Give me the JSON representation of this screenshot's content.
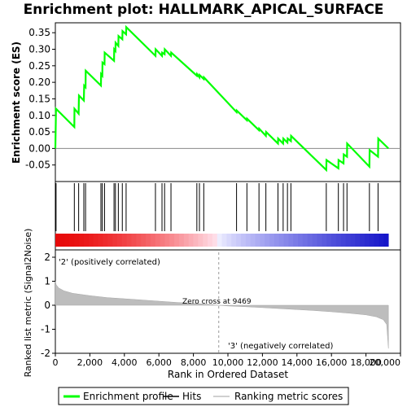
{
  "chart_data": {
    "type": "line",
    "title": "Enrichment plot: HALLMARK_APICAL_SURFACE",
    "top_panel": {
      "ylabel": "Enrichment score (ES)",
      "ylim": [
        -0.1,
        0.38
      ],
      "yticks": [
        "0.35",
        "0.30",
        "0.25",
        "0.20",
        "0.15",
        "0.10",
        "0.05",
        "0.00",
        "-0.05"
      ],
      "ytick_values": [
        0.35,
        0.3,
        0.25,
        0.2,
        0.15,
        0.1,
        0.05,
        0.0,
        -0.05
      ],
      "series": [
        {
          "name": "Enrichment profile",
          "color": "#00ff00",
          "x": [
            0,
            40,
            1100,
            1110,
            1350,
            1370,
            1650,
            1670,
            1750,
            1760,
            2640,
            2650,
            2720,
            2730,
            2850,
            2860,
            3400,
            3410,
            3480,
            3490,
            3650,
            3660,
            3880,
            3890,
            4100,
            4110,
            5800,
            5810,
            6180,
            6190,
            6330,
            6340,
            6700,
            6710,
            8200,
            8210,
            8350,
            8360,
            8600,
            8610,
            10500,
            10510,
            11100,
            11110,
            11800,
            11810,
            12200,
            12210,
            12900,
            12910,
            13200,
            13210,
            13450,
            13460,
            13650,
            13660,
            15700,
            15710,
            16400,
            16410,
            16700,
            16710,
            16900,
            16910,
            18200,
            18210,
            18700,
            18710,
            19300
          ],
          "y": [
            0.0,
            0.12,
            0.065,
            0.12,
            0.105,
            0.16,
            0.145,
            0.19,
            0.185,
            0.235,
            0.19,
            0.225,
            0.22,
            0.26,
            0.255,
            0.29,
            0.265,
            0.3,
            0.295,
            0.32,
            0.31,
            0.34,
            0.33,
            0.355,
            0.345,
            0.367,
            0.28,
            0.3,
            0.28,
            0.29,
            0.285,
            0.3,
            0.28,
            0.29,
            0.22,
            0.225,
            0.215,
            0.222,
            0.21,
            0.215,
            0.11,
            0.115,
            0.085,
            0.09,
            0.055,
            0.06,
            0.038,
            0.05,
            0.015,
            0.03,
            0.015,
            0.03,
            0.018,
            0.03,
            0.022,
            0.038,
            -0.065,
            -0.035,
            -0.06,
            -0.035,
            -0.045,
            -0.018,
            -0.025,
            0.015,
            -0.055,
            -0.005,
            -0.025,
            0.03,
            0.0
          ]
        }
      ],
      "hits": [
        40,
        1100,
        1350,
        1650,
        1750,
        2640,
        2720,
        2850,
        3400,
        3480,
        3650,
        3880,
        4100,
        5800,
        6180,
        6330,
        6700,
        8200,
        8350,
        8600,
        10500,
        11100,
        11800,
        12200,
        12900,
        13200,
        13450,
        13650,
        15700,
        16400,
        16700,
        16900,
        18200,
        18700
      ]
    },
    "bottom_panel": {
      "ylabel": "Ranked list metric (Signal2Noise)",
      "xlabel": "Rank in Ordered Dataset",
      "ylim": [
        -2,
        2
      ],
      "yticks": [
        "2",
        "1",
        "0",
        "-1",
        "-2"
      ],
      "ytick_values": [
        2,
        1,
        0,
        -1,
        -2
      ],
      "xlim": [
        0,
        20000
      ],
      "xticks": [
        "0",
        "2,000",
        "4,000",
        "6,000",
        "8,000",
        "10,000",
        "12,000",
        "14,000",
        "16,000",
        "18,000",
        "20,000"
      ],
      "xtick_values": [
        0,
        2000,
        4000,
        6000,
        8000,
        10000,
        12000,
        14000,
        16000,
        18000,
        20000
      ],
      "zero_cross": 9469,
      "n_genes": 19300,
      "metric_points": [
        [
          0,
          1.0
        ],
        [
          50,
          0.85
        ],
        [
          200,
          0.72
        ],
        [
          500,
          0.6
        ],
        [
          1000,
          0.5
        ],
        [
          2000,
          0.4
        ],
        [
          3000,
          0.32
        ],
        [
          4000,
          0.27
        ],
        [
          5000,
          0.22
        ],
        [
          6000,
          0.17
        ],
        [
          7000,
          0.12
        ],
        [
          8000,
          0.08
        ],
        [
          9000,
          0.03
        ],
        [
          9469,
          0.0
        ],
        [
          10000,
          -0.03
        ],
        [
          11000,
          -0.06
        ],
        [
          12000,
          -0.1
        ],
        [
          13000,
          -0.14
        ],
        [
          14000,
          -0.18
        ],
        [
          15000,
          -0.22
        ],
        [
          16000,
          -0.27
        ],
        [
          17000,
          -0.33
        ],
        [
          18000,
          -0.4
        ],
        [
          18600,
          -0.48
        ],
        [
          19000,
          -0.6
        ],
        [
          19200,
          -0.8
        ],
        [
          19300,
          -1.8
        ]
      ]
    },
    "annotations": {
      "zero_cross_text": "Zero cross at 9469",
      "positive_label": "'2' (positively correlated)",
      "negative_label": "'3' (negatively correlated)",
      "positive_color": "#cc0000",
      "negative_color": "#0000cc"
    },
    "legend": {
      "position": "bottom",
      "items": [
        {
          "label": "Enrichment profile",
          "color": "#00ff00"
        },
        {
          "label": "Hits",
          "color": "#000000"
        },
        {
          "label": "Ranking metric scores",
          "color": "#c0c0c0"
        }
      ]
    }
  }
}
